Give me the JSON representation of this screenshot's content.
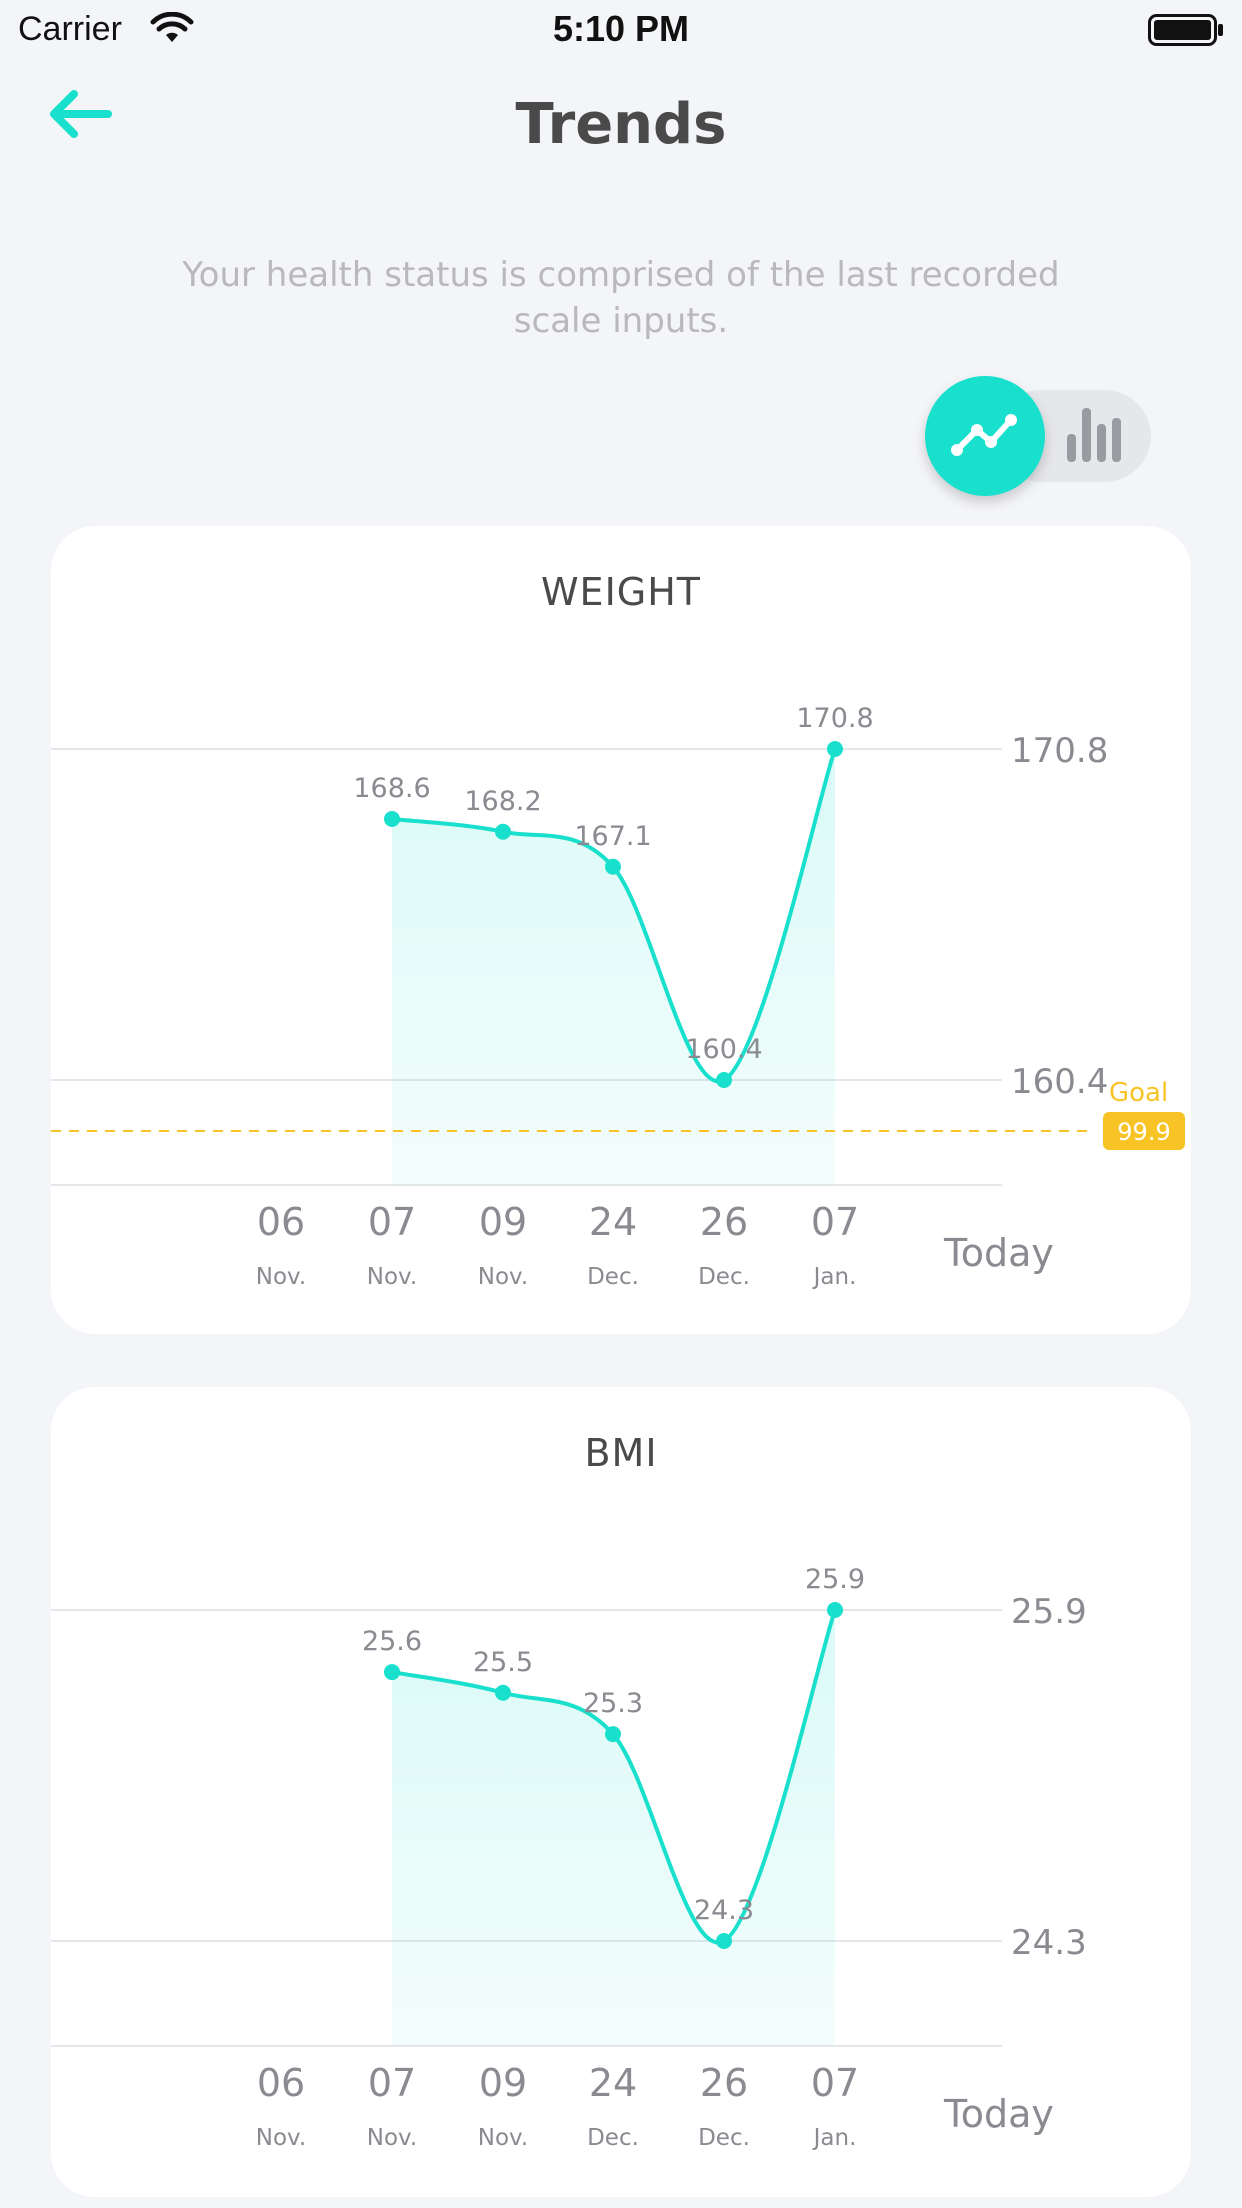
{
  "status_bar": {
    "carrier": "Carrier",
    "time": "5:10 PM"
  },
  "header": {
    "title": "Trends",
    "back_icon": "arrow-left-icon"
  },
  "subtitle": "Your health status is comprised of the last recorded scale inputs.",
  "view_toggle": {
    "active": "line",
    "options": [
      "line-chart-icon",
      "bar-chart-icon"
    ]
  },
  "colors": {
    "accent": "#19e0cc",
    "goal": "#f7c325",
    "text": "#4a4a4a",
    "muted": "#b8b8bd",
    "axis": "#8a8b90"
  },
  "chart_data": [
    {
      "type": "area",
      "title": "WEIGHT",
      "x_days": [
        "06",
        "07",
        "09",
        "24",
        "26",
        "07"
      ],
      "x_months": [
        "Nov.",
        "Nov.",
        "Nov.",
        "Dec.",
        "Dec.",
        "Jan."
      ],
      "x_end_label": "Today",
      "points": [
        {
          "day": "07",
          "month": "Nov.",
          "value": 168.6
        },
        {
          "day": "09",
          "month": "Nov.",
          "value": 168.2
        },
        {
          "day": "24",
          "month": "Dec.",
          "value": 167.1
        },
        {
          "day": "26",
          "month": "Dec.",
          "value": 160.4
        },
        {
          "day": "07",
          "month": "Jan.",
          "value": 170.8
        }
      ],
      "y_ticks": [
        "170.8",
        "160.4"
      ],
      "y_range": [
        160.4,
        170.8
      ],
      "goal": {
        "label": "Goal",
        "value": "99.9"
      }
    },
    {
      "type": "area",
      "title": "BMI",
      "x_days": [
        "06",
        "07",
        "09",
        "24",
        "26",
        "07"
      ],
      "x_months": [
        "Nov.",
        "Nov.",
        "Nov.",
        "Dec.",
        "Dec.",
        "Jan."
      ],
      "x_end_label": "Today",
      "points": [
        {
          "day": "07",
          "month": "Nov.",
          "value": 25.6
        },
        {
          "day": "09",
          "month": "Nov.",
          "value": 25.5
        },
        {
          "day": "24",
          "month": "Dec.",
          "value": 25.3
        },
        {
          "day": "26",
          "month": "Dec.",
          "value": 24.3
        },
        {
          "day": "07",
          "month": "Jan.",
          "value": 25.9
        }
      ],
      "y_ticks": [
        "25.9",
        "24.3"
      ],
      "y_range": [
        24.3,
        25.9
      ]
    }
  ]
}
